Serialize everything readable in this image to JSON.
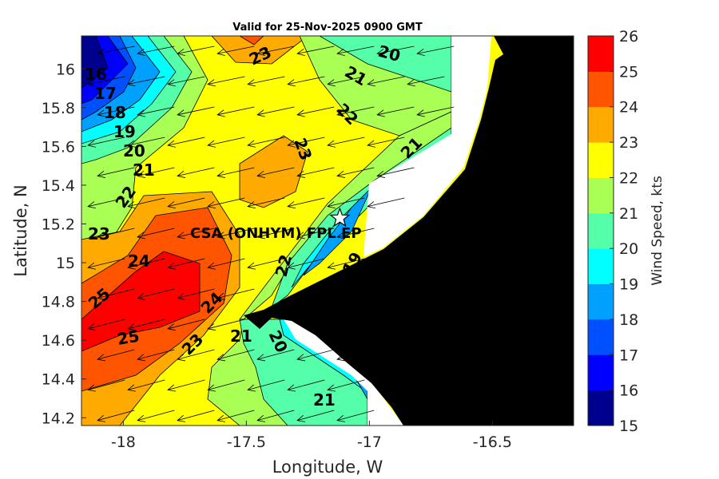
{
  "chart_data": {
    "type": "heatmap",
    "subtype": "filled-contour-with-wind-vectors",
    "title": "Valid for 25-Nov-2025 0900 GMT",
    "xlabel": "Longitude, W",
    "ylabel": "Latitude, N",
    "xlim": [
      -18.17,
      -16.17
    ],
    "ylim": [
      14.16,
      16.17
    ],
    "xticks": [
      "-18",
      "-17.5",
      "-17",
      "-16.5"
    ],
    "xtick_values": [
      -18,
      -17.5,
      -17,
      -16.5
    ],
    "yticks": [
      "16",
      "15.8",
      "15.6",
      "15.4",
      "15.2",
      "15",
      "14.8",
      "14.6",
      "14.4",
      "14.2"
    ],
    "ytick_values": [
      16,
      15.8,
      15.6,
      15.4,
      15.2,
      15,
      14.8,
      14.6,
      14.4,
      14.2
    ],
    "colorbar": {
      "label": "Wind Speed, kts",
      "range": [
        15,
        26
      ],
      "ticks": [
        "26",
        "25",
        "24",
        "23",
        "22",
        "21",
        "20",
        "19",
        "18",
        "17",
        "16",
        "15"
      ],
      "colors": [
        "#00008f",
        "#0000ff",
        "#0050ff",
        "#00a0ff",
        "#00ffff",
        "#55ffaa",
        "#aaff55",
        "#ffff00",
        "#ffaa00",
        "#ff5500",
        "#ff0000"
      ]
    },
    "contour_labels": [
      "16",
      "17",
      "18",
      "19",
      "20",
      "21",
      "22",
      "23",
      "23",
      "24",
      "25",
      "25",
      "24",
      "23",
      "22",
      "21",
      "22",
      "23",
      "20",
      "21",
      "21",
      "19",
      "20",
      "21"
    ],
    "station": {
      "name": "CSA (ONHYM) FPL EP",
      "lon": -17.12,
      "lat": 15.23
    },
    "wind_vector": {
      "u_kts": -21,
      "v_kts": -5,
      "direction": "from ENE"
    },
    "land_color": "#000000"
  }
}
